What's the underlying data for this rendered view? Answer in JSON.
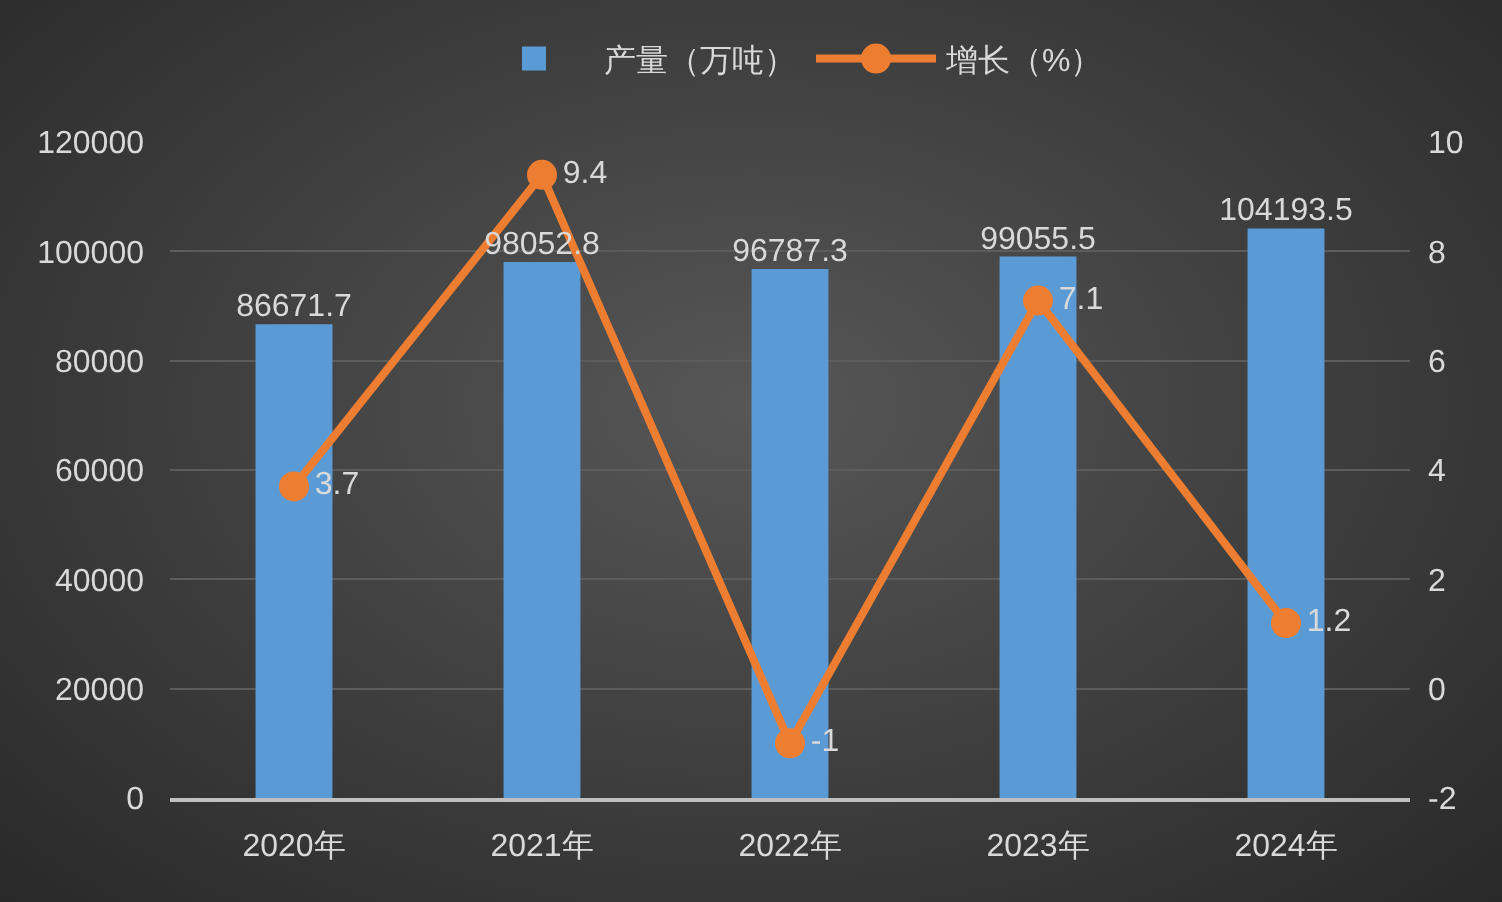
{
  "chart_data": {
    "type": "bar",
    "categories": [
      "2020年",
      "2021年",
      "2022年",
      "2023年",
      "2024年"
    ],
    "series": [
      {
        "name": "产量（万吨）",
        "color": "#5b9bd5",
        "values": [
          86671.7,
          98052.8,
          96787.3,
          99055.5,
          104193.5
        ]
      },
      {
        "name": "增长（%）",
        "type": "line",
        "axis": "y2",
        "color": "#ed7d31",
        "values": [
          3.7,
          9.4,
          -1,
          7.1,
          1.2
        ]
      }
    ],
    "ylim": [
      0,
      120000
    ],
    "yticks": [
      0,
      20000,
      40000,
      60000,
      80000,
      100000,
      120000
    ],
    "y2lim": [
      -2,
      10
    ],
    "y2ticks": [
      -2,
      0,
      2,
      4,
      6,
      8,
      10
    ],
    "grid": "y",
    "legend": "top",
    "data_labels": true,
    "marker": "circle",
    "line_style": "solid"
  }
}
